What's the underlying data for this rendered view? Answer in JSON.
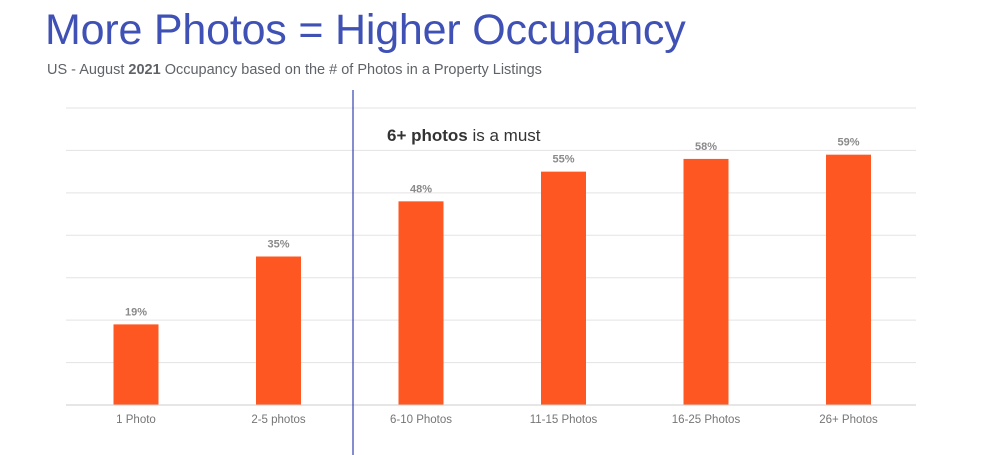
{
  "title": "More Photos = Higher Occupancy",
  "subtitle": {
    "prefix": "US - August ",
    "year": "2021",
    "suffix": " Occupancy based on the # of Photos in a Property Listings"
  },
  "annotation": {
    "bold": "6+ photos",
    "rest": " is a must"
  },
  "colors": {
    "title": "#3f51b5",
    "subtitle": "#5f6368",
    "bar": "#ff5722",
    "gridline": "#e3e3e3",
    "axis": "#cccccc",
    "divider": "#3f51b5",
    "value_label": "#8a8a8a",
    "category_label": "#757575",
    "annotation": "#333333"
  },
  "chart_data": {
    "type": "bar",
    "title": "More Photos = Higher Occupancy",
    "xlabel": "",
    "ylabel": "",
    "categories": [
      "1 Photo",
      "2-5 photos",
      "6-10 Photos",
      "11-15 Photos",
      "16-25 Photos",
      "26+ Photos"
    ],
    "values": [
      19,
      35,
      48,
      55,
      58,
      59
    ],
    "value_labels": [
      "19%",
      "35%",
      "48%",
      "55%",
      "58%",
      "59%"
    ],
    "ylim": [
      0,
      70
    ],
    "grid": true,
    "legend": "none",
    "annotations": [
      {
        "text": "6+ photos is a must",
        "position": "between 2-5 photos and 6-10 Photos, divider line"
      }
    ]
  }
}
